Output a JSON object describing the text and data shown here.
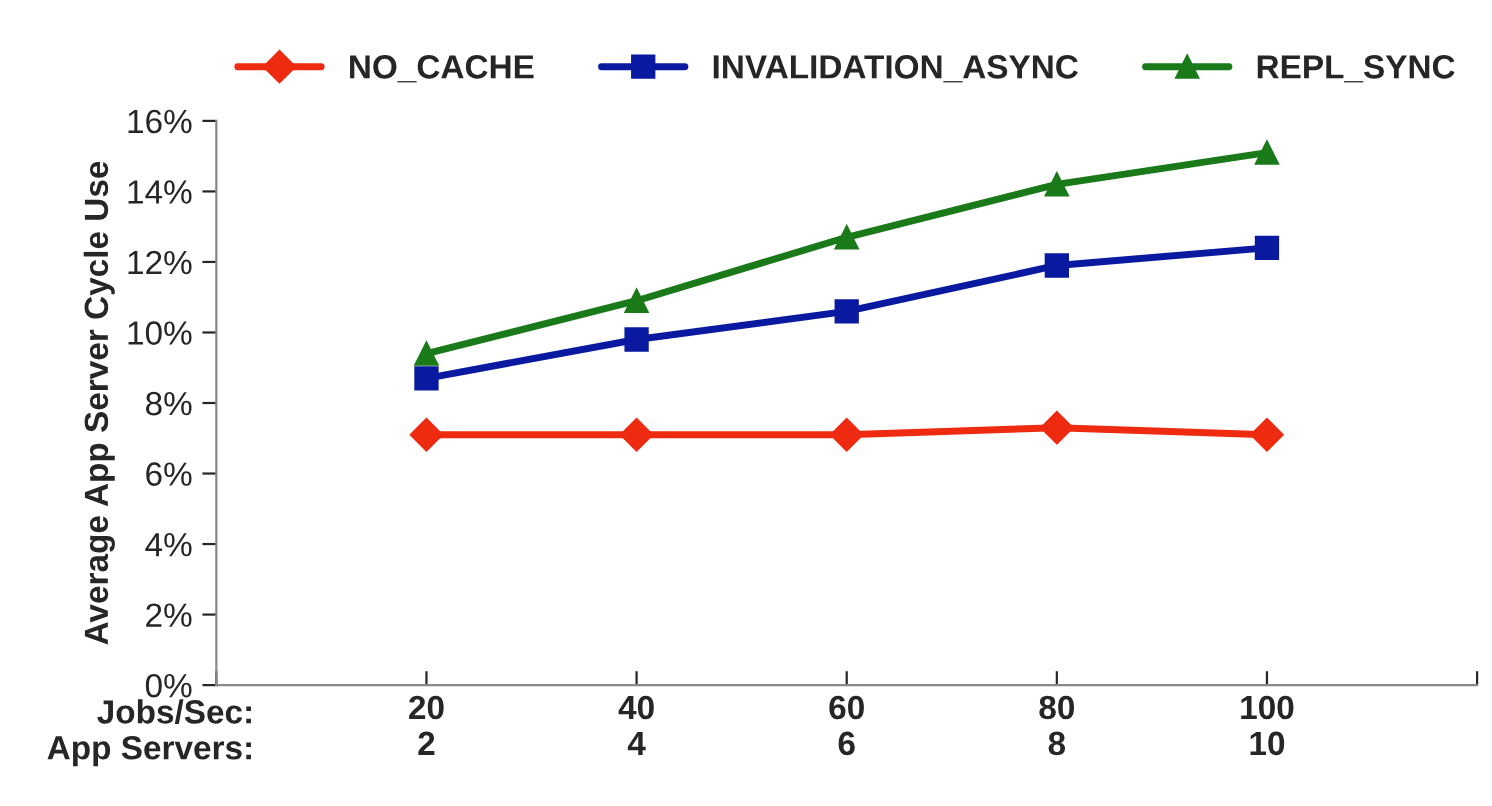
{
  "chart_data": {
    "type": "line",
    "ylabel": "Average App Server Cycle Use",
    "xlabel": "Jobs/Sec:\nApp Servers:",
    "categories": [
      null,
      "20\n2",
      "40\n4",
      "60\n6",
      "80\n8",
      "100\n10",
      null
    ],
    "series": [
      {
        "name": "NO_CACHE",
        "color": "#ee2a10",
        "marker": "diamond",
        "values": [
          null,
          7.1,
          7.1,
          7.1,
          7.3,
          7.1,
          null
        ]
      },
      {
        "name": "INVALIDATION_ASYNC",
        "color": "#0a1aa0",
        "marker": "square",
        "values": [
          null,
          8.7,
          9.8,
          10.6,
          11.9,
          12.4,
          null
        ]
      },
      {
        "name": "REPL_SYNC",
        "color": "#1a7a1a",
        "marker": "triangle",
        "values": [
          null,
          9.4,
          10.9,
          12.7,
          14.2,
          15.1,
          null
        ]
      }
    ],
    "ylim": [
      0,
      16
    ],
    "yticks": [
      {
        "value": 0,
        "label": "0%"
      },
      {
        "value": 2,
        "label": "2%"
      },
      {
        "value": 4,
        "label": "4%"
      },
      {
        "value": 6,
        "label": "6%"
      },
      {
        "value": 8,
        "label": "8%"
      },
      {
        "value": 10,
        "label": "10%"
      },
      {
        "value": 12,
        "label": "12%"
      },
      {
        "value": 14,
        "label": "14%"
      },
      {
        "value": 16,
        "label": "16%"
      }
    ],
    "legend": "top",
    "grid": false,
    "line_style": "solid"
  }
}
